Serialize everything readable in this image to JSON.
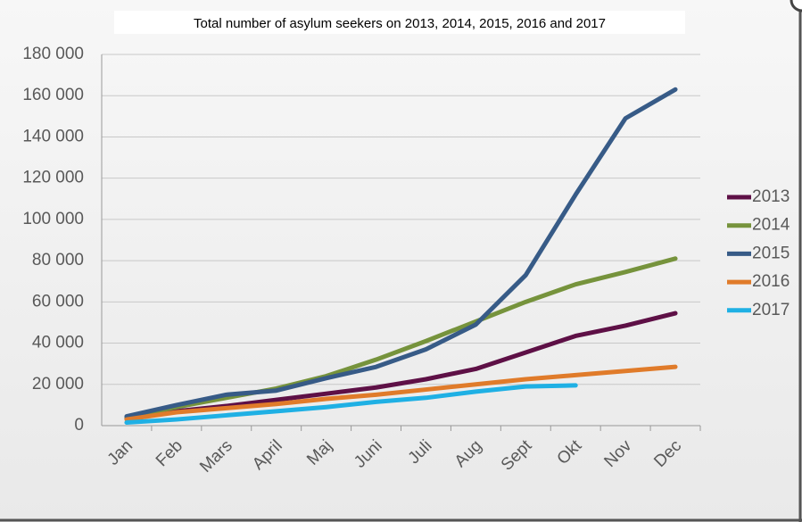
{
  "chart_data": {
    "type": "line",
    "title": "Total number of asylum seekers on 2013, 2014, 2015, 2016 and 2017",
    "categories": [
      "Jan",
      "Feb",
      "Mars",
      "April",
      "Maj",
      "Juni",
      "Juli",
      "Aug",
      "Sept",
      "Okt",
      "Nov",
      "Dec"
    ],
    "series": [
      {
        "name": "2013",
        "color": "#5e1046",
        "values": [
          3500,
          7000,
          9500,
          12500,
          15500,
          18500,
          22500,
          27500,
          35500,
          43500,
          48500,
          54500
        ]
      },
      {
        "name": "2014",
        "color": "#76933c",
        "values": [
          4000,
          9000,
          13500,
          18000,
          24000,
          32000,
          41000,
          50500,
          60000,
          68500,
          74500,
          81000
        ]
      },
      {
        "name": "2015",
        "color": "#375b87",
        "values": [
          4500,
          10000,
          15000,
          17000,
          23000,
          28500,
          37000,
          49000,
          73000,
          112000,
          149000,
          163000
        ]
      },
      {
        "name": "2016",
        "color": "#e07b2a",
        "values": [
          3000,
          6500,
          8500,
          10500,
          13000,
          15000,
          17500,
          20000,
          22500,
          24500,
          26500,
          28500
        ]
      },
      {
        "name": "2017",
        "color": "#1fb0e4",
        "values": [
          1500,
          3000,
          5000,
          7000,
          9000,
          11500,
          13500,
          16500,
          19000,
          19500,
          null,
          null
        ]
      }
    ],
    "ylim": [
      0,
      180000
    ],
    "yticks": [
      0,
      {
        "value": 20000,
        "label": "20 000"
      },
      {
        "value": 40000,
        "label": "40 000"
      },
      {
        "value": 60000,
        "label": "60 000"
      },
      {
        "value": 80000,
        "label": "80 000"
      },
      {
        "value": 100000,
        "label": "100 000"
      },
      {
        "value": 120000,
        "label": "120 000"
      },
      {
        "value": 140000,
        "label": "140 000"
      },
      {
        "value": 160000,
        "label": "160 000"
      },
      {
        "value": 180000,
        "label": "180 000"
      }
    ],
    "grid": true,
    "legend": "right"
  }
}
